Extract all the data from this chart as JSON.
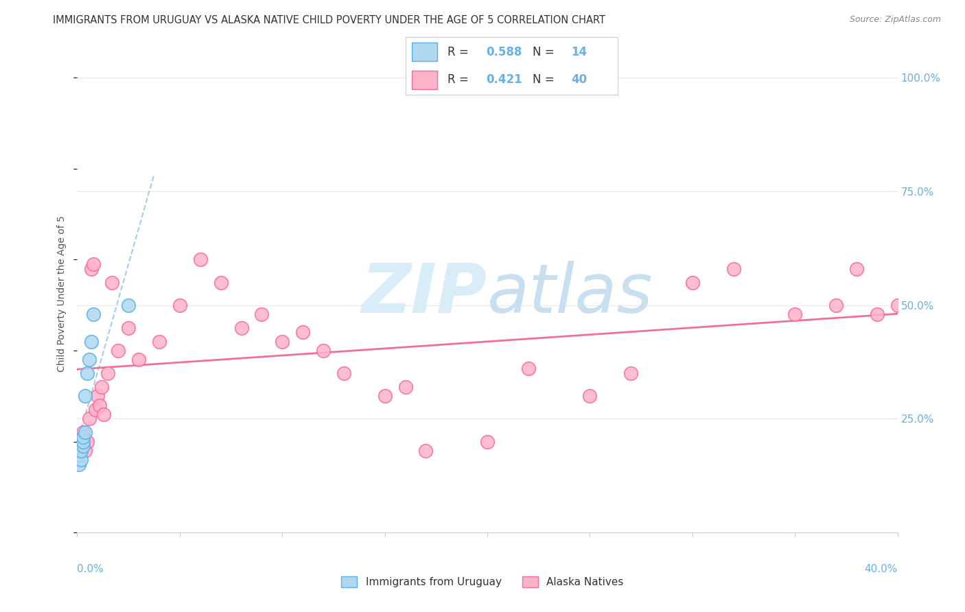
{
  "title": "IMMIGRANTS FROM URUGUAY VS ALASKA NATIVE CHILD POVERTY UNDER THE AGE OF 5 CORRELATION CHART",
  "source": "Source: ZipAtlas.com",
  "legend_label1": "Immigrants from Uruguay",
  "legend_label2": "Alaska Natives",
  "R1": "0.588",
  "N1": "14",
  "R2": "0.421",
  "N2": "40",
  "color_blue_fill": "#add8f0",
  "color_blue_edge": "#5baee0",
  "color_pink_fill": "#ffb3c8",
  "color_pink_edge": "#f768a1",
  "color_trend_blue": "#90c0e0",
  "color_trend_pink": "#f06090",
  "watermark_color": "#d8edf8",
  "title_color": "#333333",
  "axis_label_color": "#6ab0e0",
  "grid_color": "#e8e8e8",
  "uruguay_x": [
    0.001,
    0.001,
    0.002,
    0.002,
    0.003,
    0.003,
    0.003,
    0.004,
    0.004,
    0.005,
    0.006,
    0.007,
    0.008,
    0.025
  ],
  "uruguay_y": [
    0.15,
    0.17,
    0.16,
    0.18,
    0.19,
    0.2,
    0.21,
    0.22,
    0.3,
    0.35,
    0.38,
    0.42,
    0.48,
    0.5
  ],
  "alaska_x": [
    0.003,
    0.004,
    0.005,
    0.006,
    0.007,
    0.008,
    0.009,
    0.01,
    0.011,
    0.012,
    0.013,
    0.015,
    0.017,
    0.02,
    0.025,
    0.03,
    0.04,
    0.05,
    0.06,
    0.07,
    0.08,
    0.09,
    0.1,
    0.11,
    0.12,
    0.13,
    0.15,
    0.16,
    0.17,
    0.2,
    0.22,
    0.25,
    0.27,
    0.3,
    0.32,
    0.35,
    0.37,
    0.38,
    0.39,
    0.4
  ],
  "alaska_y": [
    0.22,
    0.18,
    0.2,
    0.25,
    0.58,
    0.59,
    0.27,
    0.3,
    0.28,
    0.32,
    0.26,
    0.35,
    0.55,
    0.4,
    0.45,
    0.38,
    0.42,
    0.5,
    0.6,
    0.55,
    0.45,
    0.48,
    0.42,
    0.44,
    0.4,
    0.35,
    0.3,
    0.32,
    0.18,
    0.2,
    0.36,
    0.3,
    0.35,
    0.55,
    0.58,
    0.48,
    0.5,
    0.58,
    0.48,
    0.5
  ],
  "xmin": 0.0,
  "xmax": 0.4,
  "ymin": 0.0,
  "ymax": 1.05,
  "yticks": [
    0.25,
    0.5,
    0.75,
    1.0
  ],
  "ytick_labels": [
    "25.0%",
    "50.0%",
    "75.0%",
    "100.0%"
  ]
}
